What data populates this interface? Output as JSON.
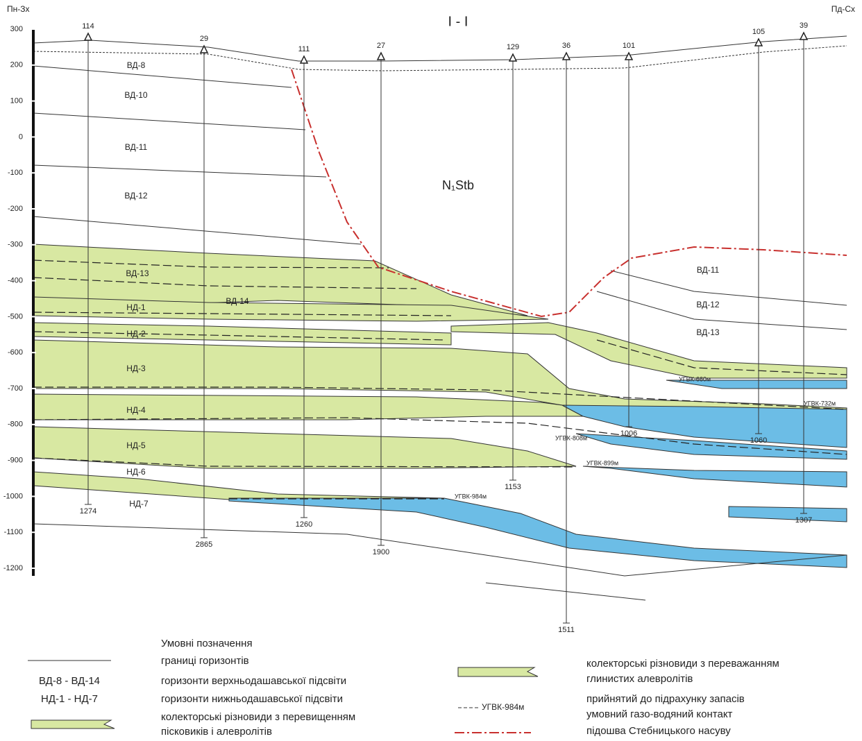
{
  "header": {
    "left": "Пн-Зх",
    "right": "Пд-Сх",
    "title": "I - I"
  },
  "depth_scale": [
    300,
    200,
    100,
    0,
    -100,
    -200,
    -300,
    -400,
    -500,
    -600,
    -700,
    -800,
    -900,
    -1000,
    -1100,
    -1200
  ],
  "wells": [
    {
      "label": "114",
      "bottom": "1274"
    },
    {
      "label": "29",
      "bottom": "2865"
    },
    {
      "label": "111",
      "bottom": "1260"
    },
    {
      "label": "27",
      "bottom": "1900"
    },
    {
      "label": "129",
      "bottom": "1153"
    },
    {
      "label": "36",
      "bottom": "1511"
    },
    {
      "label": "101",
      "bottom": "1006"
    },
    {
      "label": "105",
      "bottom": "1060"
    },
    {
      "label": "39",
      "bottom": "1307"
    }
  ],
  "horizons": [
    "ВД-8",
    "ВД-10",
    "ВД-11",
    "ВД-12",
    "ВД-13",
    "ВД-14",
    "НД-1",
    "НД-2",
    "НД-3",
    "НД-4",
    "НД-5",
    "НД-6",
    "НД-7",
    "ВД-11",
    "ВД-12",
    "ВД-13"
  ],
  "formation": "N₁Stb",
  "contacts": [
    "УГВК-660м",
    "УГВК-732м",
    "УГВК-808м",
    "УГВК-899м",
    "УГВК-984м"
  ],
  "legend": {
    "title": "Умовні позначення",
    "boundaries": "границі горизонтів",
    "upper_range": "ВД-8 - ВД-14",
    "upper": "горизонти верхньодашавської підсвіти",
    "lower_range": "НД-1 - НД-7",
    "lower": "горизонти нижньодашавської підсвіти",
    "sand": [
      "колекторські різновиди з перевищенням",
      "пісковиків і алевролітів"
    ],
    "clay": [
      "колекторські різновиди з переважанням",
      "глинистих алевролітів"
    ],
    "contact_sample": "УГВК-984м",
    "contact": [
      "прийнятий до підрахунку запасів",
      "умовний газо-водяний контакт"
    ],
    "thrust": "підошва Стебницького насуву"
  }
}
